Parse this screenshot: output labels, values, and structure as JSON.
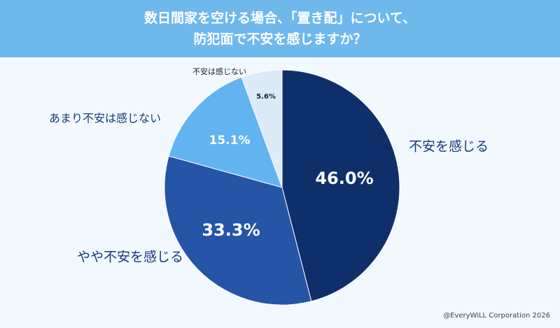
{
  "title_line1": "数日間家を空ける場合、「置き配」について、",
  "title_line2": "防犯面で不安を感じますか？",
  "credit": "@EveryWiLL Corporation 2026",
  "chart_data": {
    "type": "pie",
    "slices": [
      {
        "label": "不安を感じる",
        "value": 46.0,
        "value_label": "46.0%",
        "color": "#0f2f6b"
      },
      {
        "label": "やや不安を感じる",
        "value": 33.3,
        "value_label": "33.3%",
        "color": "#2654a6"
      },
      {
        "label": "あまり不安は感じない",
        "value": 15.1,
        "value_label": "15.1%",
        "color": "#62b4f1"
      },
      {
        "label": "不安は感じない",
        "value": 5.6,
        "value_label": "5.6%",
        "color": "#ddeaf7"
      }
    ],
    "label_color": "#153a78"
  }
}
